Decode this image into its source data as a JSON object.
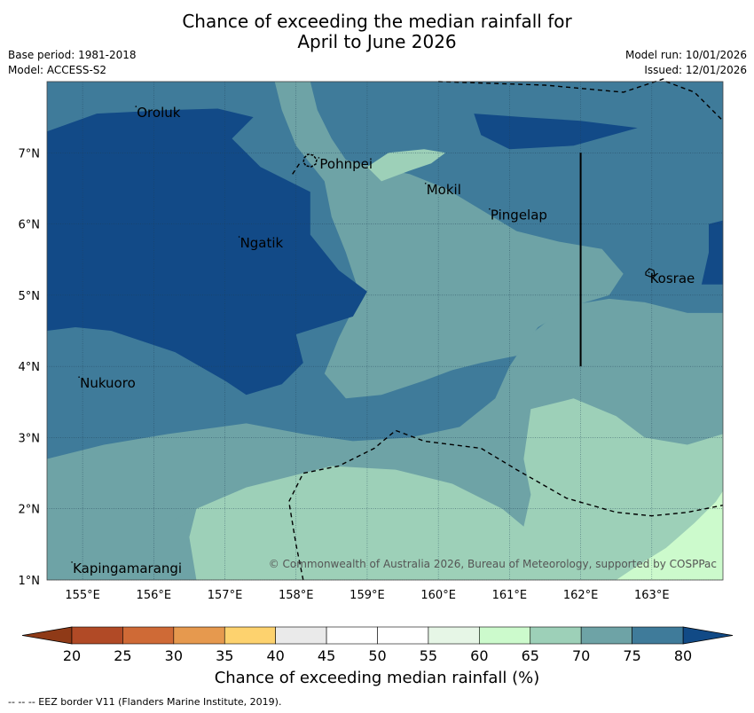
{
  "title_line1": "Chance of exceeding the median rainfall for",
  "title_line2": "April to June 2026",
  "base_period": "Base period: 1981-2018",
  "model": "Model: ACCESS-S2",
  "model_run": "Model run: 10/01/2026",
  "issued": "Issued: 12/01/2026",
  "copyright": "© Commonwealth of Australia 2026, Bureau of Meteorology, supported by COSPPac",
  "colorbar_label": "Chance of exceeding median rainfall (%)",
  "footnote": "--  --  -- EEZ border V11 (Flanders Marine Institute, 2019).",
  "map": {
    "extent": {
      "lon": [
        154.5,
        164.0
      ],
      "lat": [
        1.0,
        8.0
      ]
    },
    "lon_ticks": [
      155,
      156,
      157,
      158,
      159,
      160,
      161,
      162,
      163
    ],
    "lon_tick_labels": [
      "155°E",
      "156°E",
      "157°E",
      "158°E",
      "159°E",
      "160°E",
      "161°E",
      "162°E",
      "163°E"
    ],
    "lat_ticks": [
      1,
      2,
      3,
      4,
      5,
      6,
      7
    ],
    "lat_tick_labels": [
      "1°N",
      "2°N",
      "3°N",
      "4°N",
      "5°N",
      "6°N",
      "7°N"
    ],
    "places": [
      {
        "name": "Oroluk",
        "lon": 155.75,
        "lat": 7.65
      },
      {
        "name": "Pohnpei",
        "lon": 158.32,
        "lat": 6.93
      },
      {
        "name": "Mokil",
        "lon": 159.82,
        "lat": 6.57
      },
      {
        "name": "Pingelap",
        "lon": 160.72,
        "lat": 6.21
      },
      {
        "name": "Ngatik",
        "lon": 157.2,
        "lat": 5.82
      },
      {
        "name": "Kosrae",
        "lon": 162.96,
        "lat": 5.32
      },
      {
        "name": "Nukuoro",
        "lon": 154.95,
        "lat": 3.85
      },
      {
        "name": "Kapingamarangi",
        "lon": 154.85,
        "lat": 1.25
      }
    ],
    "base_class_color": "#3f7b9a",
    "regions": [
      {
        "color": "#6ea3a6",
        "lonlat": [
          [
            154.5,
            2.7
          ],
          [
            155.3,
            2.9
          ],
          [
            156.2,
            3.05
          ],
          [
            157.3,
            3.2
          ],
          [
            158.1,
            3.05
          ],
          [
            158.8,
            2.95
          ],
          [
            159.6,
            3.0
          ],
          [
            160.3,
            3.15
          ],
          [
            160.8,
            3.55
          ],
          [
            161.0,
            4.0
          ],
          [
            161.3,
            4.45
          ],
          [
            161.8,
            4.85
          ],
          [
            162.4,
            4.95
          ],
          [
            162.9,
            4.9
          ],
          [
            163.5,
            4.75
          ],
          [
            164.0,
            4.75
          ],
          [
            164.0,
            1.0
          ],
          [
            154.5,
            1.0
          ]
        ]
      },
      {
        "color": "#9dd0b8",
        "lonlat": [
          [
            156.6,
            1.0
          ],
          [
            156.5,
            1.6
          ],
          [
            156.6,
            2.0
          ],
          [
            157.3,
            2.3
          ],
          [
            158.5,
            2.6
          ],
          [
            159.4,
            2.55
          ],
          [
            160.2,
            2.35
          ],
          [
            160.9,
            2.0
          ],
          [
            161.2,
            1.75
          ],
          [
            161.3,
            2.2
          ],
          [
            161.2,
            2.7
          ],
          [
            161.3,
            3.4
          ],
          [
            161.9,
            3.55
          ],
          [
            162.5,
            3.3
          ],
          [
            162.9,
            3.0
          ],
          [
            163.5,
            2.9
          ],
          [
            164.0,
            3.05
          ],
          [
            164.0,
            1.0
          ]
        ]
      },
      {
        "color": "#ccfacc",
        "lonlat": [
          [
            162.5,
            1.0
          ],
          [
            162.8,
            1.2
          ],
          [
            163.2,
            1.45
          ],
          [
            163.6,
            1.8
          ],
          [
            163.9,
            2.1
          ],
          [
            164.0,
            2.25
          ],
          [
            164.0,
            1.0
          ]
        ]
      },
      {
        "color": "#6ea3a6",
        "lonlat": [
          [
            158.2,
            8.0
          ],
          [
            158.3,
            7.6
          ],
          [
            158.5,
            7.2
          ],
          [
            158.7,
            6.9
          ],
          [
            159.1,
            6.8
          ],
          [
            159.6,
            6.7
          ],
          [
            160.1,
            6.5
          ],
          [
            160.6,
            6.2
          ],
          [
            161.1,
            5.9
          ],
          [
            161.7,
            5.75
          ],
          [
            162.3,
            5.65
          ],
          [
            162.6,
            5.3
          ],
          [
            162.4,
            5.0
          ],
          [
            161.9,
            4.85
          ],
          [
            161.4,
            4.55
          ],
          [
            161.1,
            4.15
          ],
          [
            160.6,
            4.05
          ],
          [
            160.2,
            3.95
          ],
          [
            159.8,
            3.8
          ],
          [
            159.2,
            3.6
          ],
          [
            158.7,
            3.55
          ],
          [
            158.4,
            3.9
          ],
          [
            158.6,
            4.4
          ],
          [
            158.9,
            5.0
          ],
          [
            158.7,
            5.6
          ],
          [
            158.5,
            6.1
          ],
          [
            158.4,
            6.6
          ],
          [
            158.0,
            7.1
          ],
          [
            157.8,
            7.6
          ],
          [
            157.7,
            8.0
          ]
        ]
      },
      {
        "color": "#124a87",
        "lonlat": [
          [
            154.5,
            7.3
          ],
          [
            155.2,
            7.55
          ],
          [
            156.2,
            7.6
          ],
          [
            156.9,
            7.62
          ],
          [
            157.4,
            7.5
          ],
          [
            157.1,
            7.2
          ],
          [
            157.5,
            6.8
          ],
          [
            158.2,
            6.45
          ],
          [
            158.2,
            5.85
          ],
          [
            158.6,
            5.35
          ],
          [
            159.0,
            5.05
          ],
          [
            158.8,
            4.7
          ],
          [
            158.0,
            4.45
          ],
          [
            158.1,
            4.05
          ],
          [
            157.8,
            3.75
          ],
          [
            157.3,
            3.6
          ],
          [
            157.0,
            3.8
          ],
          [
            156.3,
            4.2
          ],
          [
            155.4,
            4.5
          ],
          [
            154.9,
            4.55
          ],
          [
            154.5,
            4.5
          ]
        ]
      },
      {
        "color": "#124a87",
        "lonlat": [
          [
            160.5,
            7.55
          ],
          [
            161.2,
            7.5
          ],
          [
            162.0,
            7.45
          ],
          [
            162.8,
            7.35
          ],
          [
            161.9,
            7.1
          ],
          [
            161.0,
            7.05
          ],
          [
            160.6,
            7.25
          ]
        ]
      },
      {
        "color": "#124a87",
        "lonlat": [
          [
            163.8,
            6.0
          ],
          [
            164.0,
            6.05
          ],
          [
            164.0,
            5.15
          ],
          [
            163.7,
            5.15
          ],
          [
            163.8,
            5.6
          ]
        ]
      },
      {
        "color": "#9dd0b8",
        "lonlat": [
          [
            159.2,
            6.6
          ],
          [
            159.6,
            6.75
          ],
          [
            159.9,
            6.85
          ],
          [
            160.1,
            7.0
          ],
          [
            159.8,
            7.05
          ],
          [
            159.3,
            7.0
          ],
          [
            159.0,
            6.8
          ]
        ]
      },
      {
        "color": "#6ea3a6",
        "lonlat": [
          [
            156.0,
            2.2
          ],
          [
            156.4,
            2.25
          ],
          [
            156.6,
            2.0
          ],
          [
            156.3,
            1.85
          ],
          [
            156.0,
            1.85
          ]
        ]
      }
    ],
    "eez_lines": [
      [
        [
          160.0,
          8.0
        ],
        [
          161.5,
          7.95
        ],
        [
          162.6,
          7.85
        ],
        [
          163.2,
          8.05
        ]
      ],
      [
        [
          163.2,
          8.0
        ],
        [
          163.6,
          7.85
        ],
        [
          164.0,
          7.45
        ]
      ],
      [
        [
          158.1,
          1.0
        ],
        [
          158.0,
          1.5
        ],
        [
          157.9,
          2.1
        ],
        [
          158.1,
          2.5
        ],
        [
          158.6,
          2.6
        ],
        [
          159.1,
          2.85
        ],
        [
          159.4,
          3.1
        ],
        [
          159.8,
          2.95
        ],
        [
          160.6,
          2.85
        ],
        [
          161.1,
          2.55
        ],
        [
          161.8,
          2.15
        ],
        [
          162.5,
          1.95
        ],
        [
          163.0,
          1.9
        ],
        [
          163.5,
          1.95
        ],
        [
          164.0,
          2.05
        ]
      ],
      [
        [
          157.95,
          6.7
        ],
        [
          158.05,
          6.85
        ]
      ]
    ],
    "boundary_line": [
      [
        162.0,
        7.0
      ],
      [
        162.0,
        4.0
      ]
    ]
  },
  "colorbar": {
    "ticks": [
      20,
      25,
      30,
      35,
      40,
      45,
      50,
      55,
      60,
      65,
      70,
      75,
      80
    ],
    "under_color": "#8f3a17",
    "over_color": "#114a86",
    "colors": [
      "#b14a26",
      "#cf6a36",
      "#e6994e",
      "#fdd26e",
      "#eaeaea",
      "#ffffff",
      "#ffffff",
      "#e6f6e6",
      "#ccfacc",
      "#9dd0b8",
      "#6ea3a6",
      "#3f7b9a"
    ]
  }
}
